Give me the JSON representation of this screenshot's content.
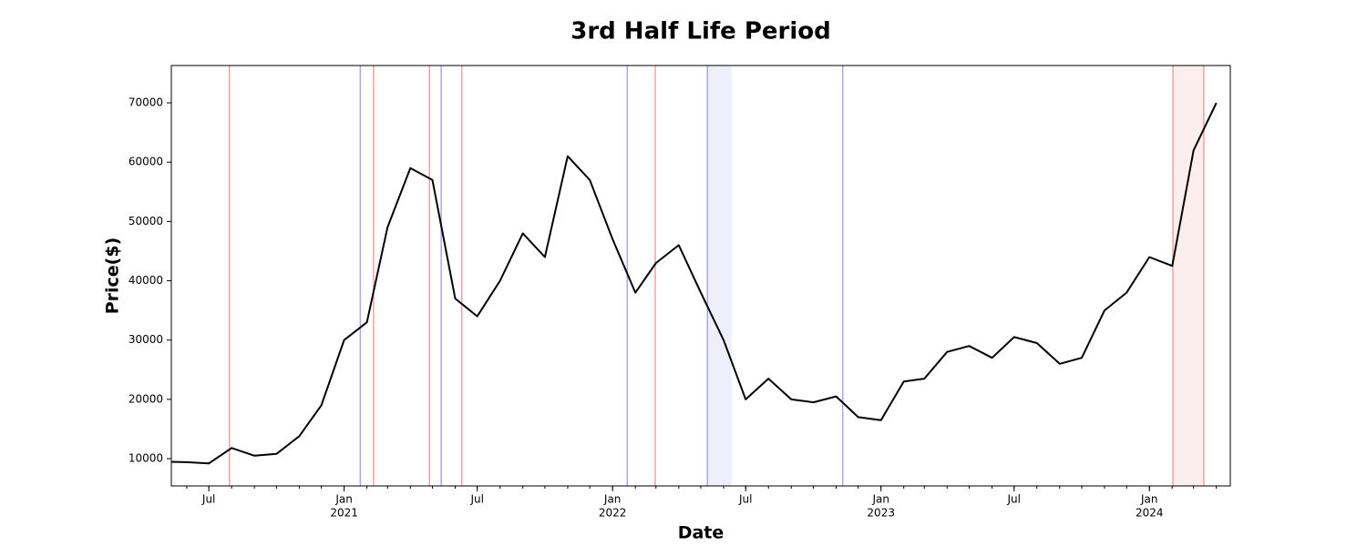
{
  "chart_data": {
    "type": "line",
    "title": "3rd Half Life Period",
    "x_label": "Date",
    "y_label": "Price($)",
    "x": [
      "2020-05",
      "2020-06",
      "2020-07",
      "2020-08",
      "2020-09",
      "2020-10",
      "2020-11",
      "2020-12",
      "2021-01",
      "2021-02",
      "2021-03",
      "2021-04",
      "2021-05",
      "2021-06",
      "2021-07",
      "2021-08",
      "2021-09",
      "2021-10",
      "2021-11",
      "2021-12",
      "2022-01",
      "2022-02",
      "2022-03",
      "2022-04",
      "2022-05",
      "2022-06",
      "2022-07",
      "2022-08",
      "2022-09",
      "2022-10",
      "2022-11",
      "2022-12",
      "2023-01",
      "2023-02",
      "2023-03",
      "2023-04",
      "2023-05",
      "2023-06",
      "2023-07",
      "2023-08",
      "2023-09",
      "2023-10",
      "2023-11",
      "2023-12",
      "2024-01",
      "2024-02",
      "2024-03",
      "2024-04"
    ],
    "series": [
      {
        "name": "Price",
        "color": "#000000",
        "values": [
          9500,
          9400,
          9200,
          11800,
          10500,
          10800,
          13800,
          19000,
          30000,
          33000,
          49000,
          59000,
          57000,
          37000,
          34000,
          40000,
          48000,
          44000,
          61000,
          57000,
          47000,
          38000,
          43000,
          46000,
          38000,
          30000,
          20000,
          23500,
          20000,
          19500,
          20500,
          17000,
          16500,
          23000,
          23500,
          28000,
          29000,
          27000,
          30500,
          29500,
          26000,
          27000,
          35000,
          38000,
          44000,
          42500,
          62000,
          70000
        ]
      }
    ],
    "xlim": [
      "2020-05-11",
      "2024-04-20"
    ],
    "xticks": [
      {
        "value": "2020-07",
        "label": "Jul"
      },
      {
        "value": "2021-01",
        "label": "Jan",
        "year": "2021"
      },
      {
        "value": "2021-07",
        "label": "Jul"
      },
      {
        "value": "2022-01",
        "label": "Jan",
        "year": "2022"
      },
      {
        "value": "2022-07",
        "label": "Jul"
      },
      {
        "value": "2023-01",
        "label": "Jan",
        "year": "2023"
      },
      {
        "value": "2023-07",
        "label": "Jul"
      },
      {
        "value": "2024-01",
        "label": "Jan",
        "year": "2024"
      }
    ],
    "ylim": [
      5400,
      76300
    ],
    "yticks": [
      10000,
      20000,
      30000,
      40000,
      50000,
      60000,
      70000
    ],
    "events": [
      {
        "date": "2020-07-29",
        "color": "#f4a0a0"
      },
      {
        "date": "2021-01-23",
        "color": "#a8a8f0"
      },
      {
        "date": "2021-02-10",
        "color": "#f4a0a0"
      },
      {
        "date": "2021-04-27",
        "color": "#f4a0a0"
      },
      {
        "date": "2021-05-13",
        "color": "#a8a8f0"
      },
      {
        "date": "2021-06-10",
        "color": "#f4a0a0"
      },
      {
        "date": "2022-01-21",
        "color": "#a8a8f0"
      },
      {
        "date": "2022-02-28",
        "color": "#f4a0a0"
      },
      {
        "date": "2022-05-10",
        "color": "#a8a8f0"
      },
      {
        "date": "2022-11-10",
        "color": "#a8a8f0"
      },
      {
        "date": "2024-02-02",
        "color": "#f4a0a0"
      },
      {
        "date": "2024-03-15",
        "color": "#f4a0a0"
      }
    ],
    "spans": [
      {
        "start": "2022-05-10",
        "end": "2022-06-12",
        "color": "#eeeefd"
      },
      {
        "start": "2024-02-02",
        "end": "2024-03-15",
        "color": "#fdeeee"
      }
    ]
  }
}
